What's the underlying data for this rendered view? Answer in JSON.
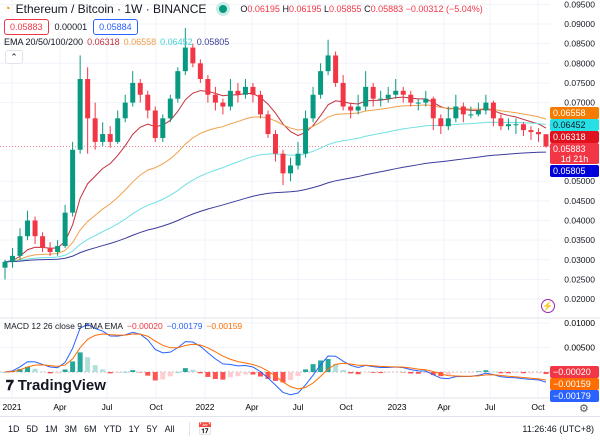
{
  "header": {
    "symbol": "Ethereum / Bitcoin · 1W · BINANCE",
    "o_label": "O",
    "o": "0.06195",
    "h_label": "H",
    "h": "0.06195",
    "l_label": "L",
    "l": "0.05855",
    "c_label": "C",
    "c": "0.05883",
    "change": "−0.00312 (−5.04%)"
  },
  "quote": {
    "sell": "0.05883",
    "spread": "0.00001",
    "buy": "0.05884"
  },
  "ema_legend": {
    "label": "EMA 20/50/100/200",
    "v20": "0.06318",
    "v50": "0.06558",
    "v100": "0.06452",
    "v200": "0.05805"
  },
  "macd_legend": {
    "label": "MACD 12 26 close 9 EMA EMA",
    "hist": "−0.00020",
    "macd": "−0.00179",
    "signal": "−0.00159"
  },
  "price_tags": {
    "ema50": "0.06558",
    "ema100": "0.06452",
    "ema20": "0.06318",
    "last": "0.05883",
    "countdown": "1d 21h",
    "ema200": "0.05805"
  },
  "macd_tags": {
    "hist": "−0.00020",
    "signal": "−0.00159",
    "macd": "−0.00179"
  },
  "brand": "TradingView",
  "ranges": [
    "1D",
    "5D",
    "1M",
    "3M",
    "6M",
    "YTD",
    "1Y",
    "5Y",
    "All"
  ],
  "clock": "11:26:46 (UTC+8)",
  "colors": {
    "up": "#089981",
    "down": "#f23645",
    "ema20": "#c2313c",
    "ema50": "#f0a04b",
    "ema100": "#6fe0e3",
    "ema200": "#3c3c9c",
    "macd": "#2962ff",
    "signal": "#ff6d00"
  },
  "chart_data": {
    "type": "candlestick",
    "interval": "1W",
    "price_axis": {
      "ticks": [
        "0.09500",
        "0.09000",
        "0.08500",
        "0.08000",
        "0.07500",
        "0.07000",
        "0.05000",
        "0.04500",
        "0.04000",
        "0.03500",
        "0.03000",
        "0.02500",
        "0.02000"
      ],
      "range": [
        0.0178,
        0.0962
      ]
    },
    "macd_axis": {
      "ticks": [
        "0.01000",
        "0.00500"
      ],
      "range": [
        -0.0052,
        0.0106
      ]
    },
    "time_ticks": [
      "2021",
      "Apr",
      "Jul",
      "Oct",
      "2022",
      "Apr",
      "Jul",
      "Oct",
      "2023",
      "Apr",
      "Jul",
      "Oct"
    ],
    "candles": [
      [
        0.028,
        0.03,
        0.025,
        0.0295
      ],
      [
        0.0295,
        0.033,
        0.028,
        0.031
      ],
      [
        0.031,
        0.038,
        0.03,
        0.036
      ],
      [
        0.036,
        0.0425,
        0.035,
        0.04
      ],
      [
        0.04,
        0.041,
        0.034,
        0.036
      ],
      [
        0.036,
        0.037,
        0.032,
        0.033
      ],
      [
        0.033,
        0.0345,
        0.031,
        0.032
      ],
      [
        0.032,
        0.035,
        0.031,
        0.0335
      ],
      [
        0.0335,
        0.044,
        0.033,
        0.042
      ],
      [
        0.042,
        0.06,
        0.041,
        0.058
      ],
      [
        0.058,
        0.082,
        0.057,
        0.076
      ],
      [
        0.076,
        0.079,
        0.057,
        0.066
      ],
      [
        0.066,
        0.07,
        0.058,
        0.06
      ],
      [
        0.06,
        0.065,
        0.059,
        0.062
      ],
      [
        0.062,
        0.064,
        0.0585,
        0.06
      ],
      [
        0.06,
        0.068,
        0.0595,
        0.066
      ],
      [
        0.066,
        0.072,
        0.065,
        0.07
      ],
      [
        0.07,
        0.078,
        0.069,
        0.075
      ],
      [
        0.075,
        0.076,
        0.07,
        0.072
      ],
      [
        0.072,
        0.073,
        0.066,
        0.068
      ],
      [
        0.068,
        0.069,
        0.06,
        0.061
      ],
      [
        0.061,
        0.067,
        0.06,
        0.066
      ],
      [
        0.066,
        0.072,
        0.065,
        0.071
      ],
      [
        0.071,
        0.079,
        0.07,
        0.078
      ],
      [
        0.078,
        0.089,
        0.077,
        0.084
      ],
      [
        0.084,
        0.085,
        0.079,
        0.08
      ],
      [
        0.08,
        0.081,
        0.075,
        0.076
      ],
      [
        0.076,
        0.077,
        0.07,
        0.072
      ],
      [
        0.072,
        0.074,
        0.068,
        0.07
      ],
      [
        0.07,
        0.071,
        0.067,
        0.069
      ],
      [
        0.069,
        0.076,
        0.068,
        0.073
      ],
      [
        0.073,
        0.075,
        0.07,
        0.072
      ],
      [
        0.072,
        0.076,
        0.071,
        0.074
      ],
      [
        0.074,
        0.075,
        0.07,
        0.072
      ],
      [
        0.072,
        0.073,
        0.066,
        0.067
      ],
      [
        0.067,
        0.068,
        0.061,
        0.062
      ],
      [
        0.062,
        0.063,
        0.055,
        0.057
      ],
      [
        0.057,
        0.058,
        0.049,
        0.052
      ],
      [
        0.052,
        0.056,
        0.05,
        0.054
      ],
      [
        0.054,
        0.06,
        0.053,
        0.057
      ],
      [
        0.057,
        0.068,
        0.056,
        0.066
      ],
      [
        0.066,
        0.074,
        0.065,
        0.072
      ],
      [
        0.072,
        0.08,
        0.071,
        0.078
      ],
      [
        0.078,
        0.086,
        0.077,
        0.082
      ],
      [
        0.082,
        0.083,
        0.074,
        0.075
      ],
      [
        0.075,
        0.077,
        0.068,
        0.069
      ],
      [
        0.069,
        0.07,
        0.066,
        0.068
      ],
      [
        0.068,
        0.072,
        0.067,
        0.069
      ],
      [
        0.069,
        0.078,
        0.068,
        0.074
      ],
      [
        0.074,
        0.075,
        0.069,
        0.071
      ],
      [
        0.071,
        0.073,
        0.069,
        0.071
      ],
      [
        0.071,
        0.074,
        0.07,
        0.072
      ],
      [
        0.072,
        0.076,
        0.071,
        0.073
      ],
      [
        0.073,
        0.074,
        0.07,
        0.072
      ],
      [
        0.072,
        0.073,
        0.069,
        0.07
      ],
      [
        0.07,
        0.071,
        0.068,
        0.07
      ],
      [
        0.07,
        0.073,
        0.069,
        0.071
      ],
      [
        0.071,
        0.0715,
        0.063,
        0.066
      ],
      [
        0.066,
        0.067,
        0.062,
        0.064
      ],
      [
        0.064,
        0.069,
        0.063,
        0.066
      ],
      [
        0.066,
        0.072,
        0.065,
        0.069
      ],
      [
        0.069,
        0.07,
        0.065,
        0.067
      ],
      [
        0.067,
        0.069,
        0.066,
        0.067
      ],
      [
        0.067,
        0.07,
        0.0665,
        0.068
      ],
      [
        0.068,
        0.072,
        0.067,
        0.07
      ],
      [
        0.07,
        0.0705,
        0.064,
        0.066
      ],
      [
        0.066,
        0.067,
        0.063,
        0.064
      ],
      [
        0.064,
        0.066,
        0.063,
        0.0645
      ],
      [
        0.0645,
        0.066,
        0.062,
        0.0645
      ],
      [
        0.0645,
        0.065,
        0.0615,
        0.063
      ],
      [
        0.063,
        0.064,
        0.0605,
        0.0625
      ],
      [
        0.0625,
        0.0635,
        0.06,
        0.06195
      ],
      [
        0.06195,
        0.06195,
        0.05855,
        0.05883
      ]
    ],
    "ema_periods": [
      20,
      50,
      100,
      200
    ],
    "macd_params": {
      "fast": 12,
      "slow": 26,
      "signal": 9
    }
  }
}
